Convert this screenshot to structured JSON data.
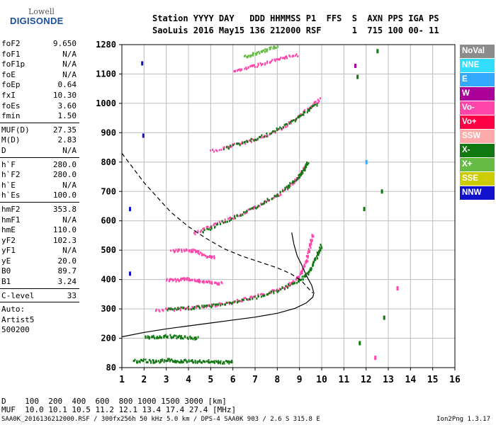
{
  "logo": {
    "top": "Lowell",
    "main": "DIGISONDE"
  },
  "header": {
    "line1": "Station YYYY DAY   DDD HHMMSS P1  FFS  S  AXN PPS IGA PS",
    "line2": "SaoLuis 2016 May15 136 212000 RSF      1  715 100 00- 11"
  },
  "params": {
    "g1": [
      {
        "k": "foF2",
        "v": "9.650"
      },
      {
        "k": "foF1",
        "v": "N/A"
      },
      {
        "k": "foF1p",
        "v": "N/A"
      },
      {
        "k": "foE",
        "v": "N/A"
      },
      {
        "k": "foEp",
        "v": "0.64"
      },
      {
        "k": "fxI",
        "v": "10.30"
      },
      {
        "k": "foEs",
        "v": "3.60"
      },
      {
        "k": "fmin",
        "v": "1.50"
      }
    ],
    "g2": [
      {
        "k": "MUF(D)",
        "v": "27.35"
      },
      {
        "k": "M(D)",
        "v": "2.83"
      },
      {
        "k": "D",
        "v": "N/A"
      }
    ],
    "g3": [
      {
        "k": "h`F",
        "v": "280.0"
      },
      {
        "k": "h`F2",
        "v": "280.0"
      },
      {
        "k": "h`E",
        "v": "N/A"
      },
      {
        "k": "h`Es",
        "v": "100.0"
      }
    ],
    "g4": [
      {
        "k": "hmF2",
        "v": "353.8"
      },
      {
        "k": "hmF1",
        "v": "N/A"
      },
      {
        "k": "hmE",
        "v": "110.0"
      },
      {
        "k": "yF2",
        "v": "102.3"
      },
      {
        "k": "yF1",
        "v": "N/A"
      },
      {
        "k": "yE",
        "v": "20.0"
      },
      {
        "k": "B0",
        "v": "89.7"
      },
      {
        "k": "B1",
        "v": "3.24"
      }
    ],
    "g5": [
      {
        "k": "C-level",
        "v": "33"
      }
    ],
    "auto_label": "Auto:",
    "artist": "Artist5",
    "code": "500200"
  },
  "legend": [
    {
      "label": "NoVal",
      "color": "#8c8c8c"
    },
    {
      "label": "NNE",
      "color": "#33ddff"
    },
    {
      "label": "E",
      "color": "#33aaff"
    },
    {
      "label": "W",
      "color": "#aa0099"
    },
    {
      "label": "Vo-",
      "color": "#ff44aa"
    },
    {
      "label": "Vo+",
      "color": "#ff0044"
    },
    {
      "label": "SSW",
      "color": "#ffaaaa"
    },
    {
      "label": "X-",
      "color": "#117711"
    },
    {
      "label": "X+",
      "color": "#66bb44"
    },
    {
      "label": "SSE",
      "color": "#cccc00"
    },
    {
      "label": "NNW",
      "color": "#1111cc"
    }
  ],
  "footer": {
    "d_row": "D    100  200  400  600  800 1000 1500 3000 [km]",
    "muf_row": "MUF  10.0 10.1 10.5 11.2 12.1 13.4 17.4 27.4 [MHz]",
    "source": "SAA0K_2016136212000.RSF / 300fx256h 50 kHz 5.0 km / DPS-4 SAA0K 903 / 2.6 S 315.8 E",
    "version": "Ion2Png 1.3.17"
  },
  "chart_data": {
    "type": "scatter",
    "x_ticks": [
      "1",
      "2",
      "3",
      "4",
      "5",
      "6",
      "7",
      "8",
      "9",
      "10",
      "11",
      "12",
      "13",
      "14",
      "15",
      "16"
    ],
    "y_ticks": [
      "80",
      "200",
      "300",
      "400",
      "500",
      "600",
      "700",
      "800",
      "900",
      "1000",
      "1100",
      "1280"
    ],
    "xlim": [
      1,
      16
    ],
    "ylim": [
      80,
      1280
    ],
    "grid": true,
    "traces": [
      {
        "name": "o-trace F2",
        "color": "#ff44aa",
        "points": [
          [
            2.5,
            298
          ],
          [
            3.5,
            303
          ],
          [
            4.5,
            310
          ],
          [
            5.5,
            320
          ],
          [
            6.5,
            335
          ],
          [
            7.5,
            355
          ],
          [
            8.3,
            378
          ],
          [
            8.8,
            400
          ],
          [
            9.1,
            430
          ],
          [
            9.3,
            470
          ],
          [
            9.45,
            520
          ],
          [
            9.6,
            560
          ]
        ]
      },
      {
        "name": "x-trace F2",
        "color": "#117711",
        "points": [
          [
            3.0,
            300
          ],
          [
            4.0,
            306
          ],
          [
            5.0,
            314
          ],
          [
            6.0,
            325
          ],
          [
            7.0,
            342
          ],
          [
            8.0,
            365
          ],
          [
            8.8,
            392
          ],
          [
            9.3,
            420
          ],
          [
            9.6,
            455
          ],
          [
            9.8,
            490
          ],
          [
            9.95,
            520
          ]
        ]
      },
      {
        "name": "2F o-trace",
        "color": "#ff44aa",
        "points": [
          [
            4.2,
            560
          ],
          [
            5.0,
            585
          ],
          [
            6.0,
            615
          ],
          [
            7.0,
            650
          ],
          [
            8.0,
            690
          ],
          [
            8.7,
            730
          ],
          [
            9.0,
            760
          ],
          [
            9.25,
            790
          ]
        ]
      },
      {
        "name": "2F x-trace",
        "color": "#117711",
        "points": [
          [
            4.6,
            565
          ],
          [
            5.5,
            598
          ],
          [
            6.5,
            630
          ],
          [
            7.5,
            670
          ],
          [
            8.4,
            715
          ],
          [
            8.9,
            750
          ],
          [
            9.2,
            780
          ],
          [
            9.35,
            800
          ]
        ]
      },
      {
        "name": "3F trace",
        "color": "#ff44aa",
        "points": [
          [
            5.0,
            840
          ],
          [
            6.0,
            860
          ],
          [
            7.0,
            880
          ],
          [
            8.0,
            910
          ],
          [
            8.8,
            950
          ],
          [
            9.5,
            990
          ],
          [
            9.9,
            1020
          ]
        ]
      },
      {
        "name": "3F x-trace",
        "color": "#117711",
        "points": [
          [
            5.6,
            850
          ],
          [
            6.6,
            872
          ],
          [
            7.6,
            898
          ],
          [
            8.5,
            935
          ],
          [
            9.2,
            970
          ],
          [
            9.8,
            1005
          ]
        ]
      },
      {
        "name": "4F trace",
        "color": "#ff44aa",
        "points": [
          [
            6.0,
            1120
          ],
          [
            6.8,
            1150
          ],
          [
            7.5,
            1175
          ],
          [
            8.2,
            1200
          ],
          [
            8.9,
            1225
          ]
        ]
      },
      {
        "name": "5F trace",
        "color": "#66bb44",
        "points": [
          [
            6.5,
            1210
          ],
          [
            7.0,
            1230
          ],
          [
            7.5,
            1255
          ],
          [
            8.0,
            1275
          ]
        ]
      },
      {
        "name": "Es layer",
        "color": "#117711",
        "points": [
          [
            2.0,
            205
          ],
          [
            2.5,
            208
          ],
          [
            3.0,
            210
          ],
          [
            3.5,
            208
          ],
          [
            4.0,
            205
          ],
          [
            4.4,
            203
          ]
        ]
      },
      {
        "name": "Es 2x",
        "color": "#ff44aa",
        "points": [
          [
            3.0,
            400
          ],
          [
            3.5,
            402
          ],
          [
            4.0,
            405
          ],
          [
            4.5,
            398
          ],
          [
            5.0,
            392
          ],
          [
            5.5,
            390
          ]
        ]
      },
      {
        "name": "Es 3x",
        "color": "#ff44aa",
        "points": [
          [
            3.2,
            500
          ],
          [
            3.8,
            502
          ],
          [
            4.3,
            500
          ],
          [
            4.8,
            482
          ],
          [
            5.2,
            478
          ]
        ]
      },
      {
        "name": "noise",
        "color": "#117711",
        "points": [
          [
            1.5,
            110
          ],
          [
            2.0,
            112
          ],
          [
            2.5,
            108
          ],
          [
            3.0,
            115
          ],
          [
            3.5,
            110
          ],
          [
            4.0,
            112
          ],
          [
            4.5,
            108
          ],
          [
            5.0,
            110
          ],
          [
            5.5,
            106
          ],
          [
            6.0,
            108
          ]
        ]
      }
    ],
    "profile_solid": [
      [
        1.0,
        205
      ],
      [
        2.0,
        220
      ],
      [
        3.0,
        232
      ],
      [
        4.0,
        242
      ],
      [
        5.0,
        252
      ],
      [
        6.0,
        262
      ],
      [
        7.0,
        272
      ],
      [
        8.0,
        285
      ],
      [
        8.8,
        302
      ],
      [
        9.3,
        320
      ],
      [
        9.6,
        340
      ],
      [
        9.65,
        354
      ],
      [
        9.55,
        380
      ],
      [
        9.3,
        415
      ],
      [
        9.1,
        450
      ],
      [
        8.9,
        480
      ],
      [
        8.75,
        520
      ],
      [
        8.65,
        560
      ]
    ],
    "profile_dashed": [
      [
        1.0,
        830
      ],
      [
        1.5,
        780
      ],
      [
        2.0,
        730
      ],
      [
        2.6,
        680
      ],
      [
        3.2,
        630
      ],
      [
        4.0,
        580
      ],
      [
        4.8,
        540
      ],
      [
        5.6,
        505
      ],
      [
        6.4,
        480
      ],
      [
        7.2,
        460
      ],
      [
        8.0,
        440
      ],
      [
        8.6,
        420
      ],
      [
        9.1,
        395
      ],
      [
        9.4,
        370
      ],
      [
        9.6,
        354
      ]
    ],
    "markers": [
      {
        "x": 1.35,
        "y": 640,
        "color": "#1111cc"
      },
      {
        "x": 1.35,
        "y": 420,
        "color": "#1111cc"
      },
      {
        "x": 1.95,
        "y": 890,
        "color": "#1111cc"
      },
      {
        "x": 1.9,
        "y": 1165,
        "color": "#1111cc"
      },
      {
        "x": 11.5,
        "y": 1150,
        "color": "#aa0099"
      },
      {
        "x": 11.6,
        "y": 1090,
        "color": "#117711"
      },
      {
        "x": 12.0,
        "y": 800,
        "color": "#33aaff"
      },
      {
        "x": 11.9,
        "y": 640,
        "color": "#117711"
      },
      {
        "x": 12.5,
        "y": 1240,
        "color": "#117711"
      },
      {
        "x": 12.7,
        "y": 700,
        "color": "#117711"
      },
      {
        "x": 13.4,
        "y": 370,
        "color": "#ff44aa"
      },
      {
        "x": 12.8,
        "y": 270,
        "color": "#117711"
      },
      {
        "x": 11.7,
        "y": 180,
        "color": "#117711"
      },
      {
        "x": 12.4,
        "y": 120,
        "color": "#ff44aa"
      }
    ]
  }
}
